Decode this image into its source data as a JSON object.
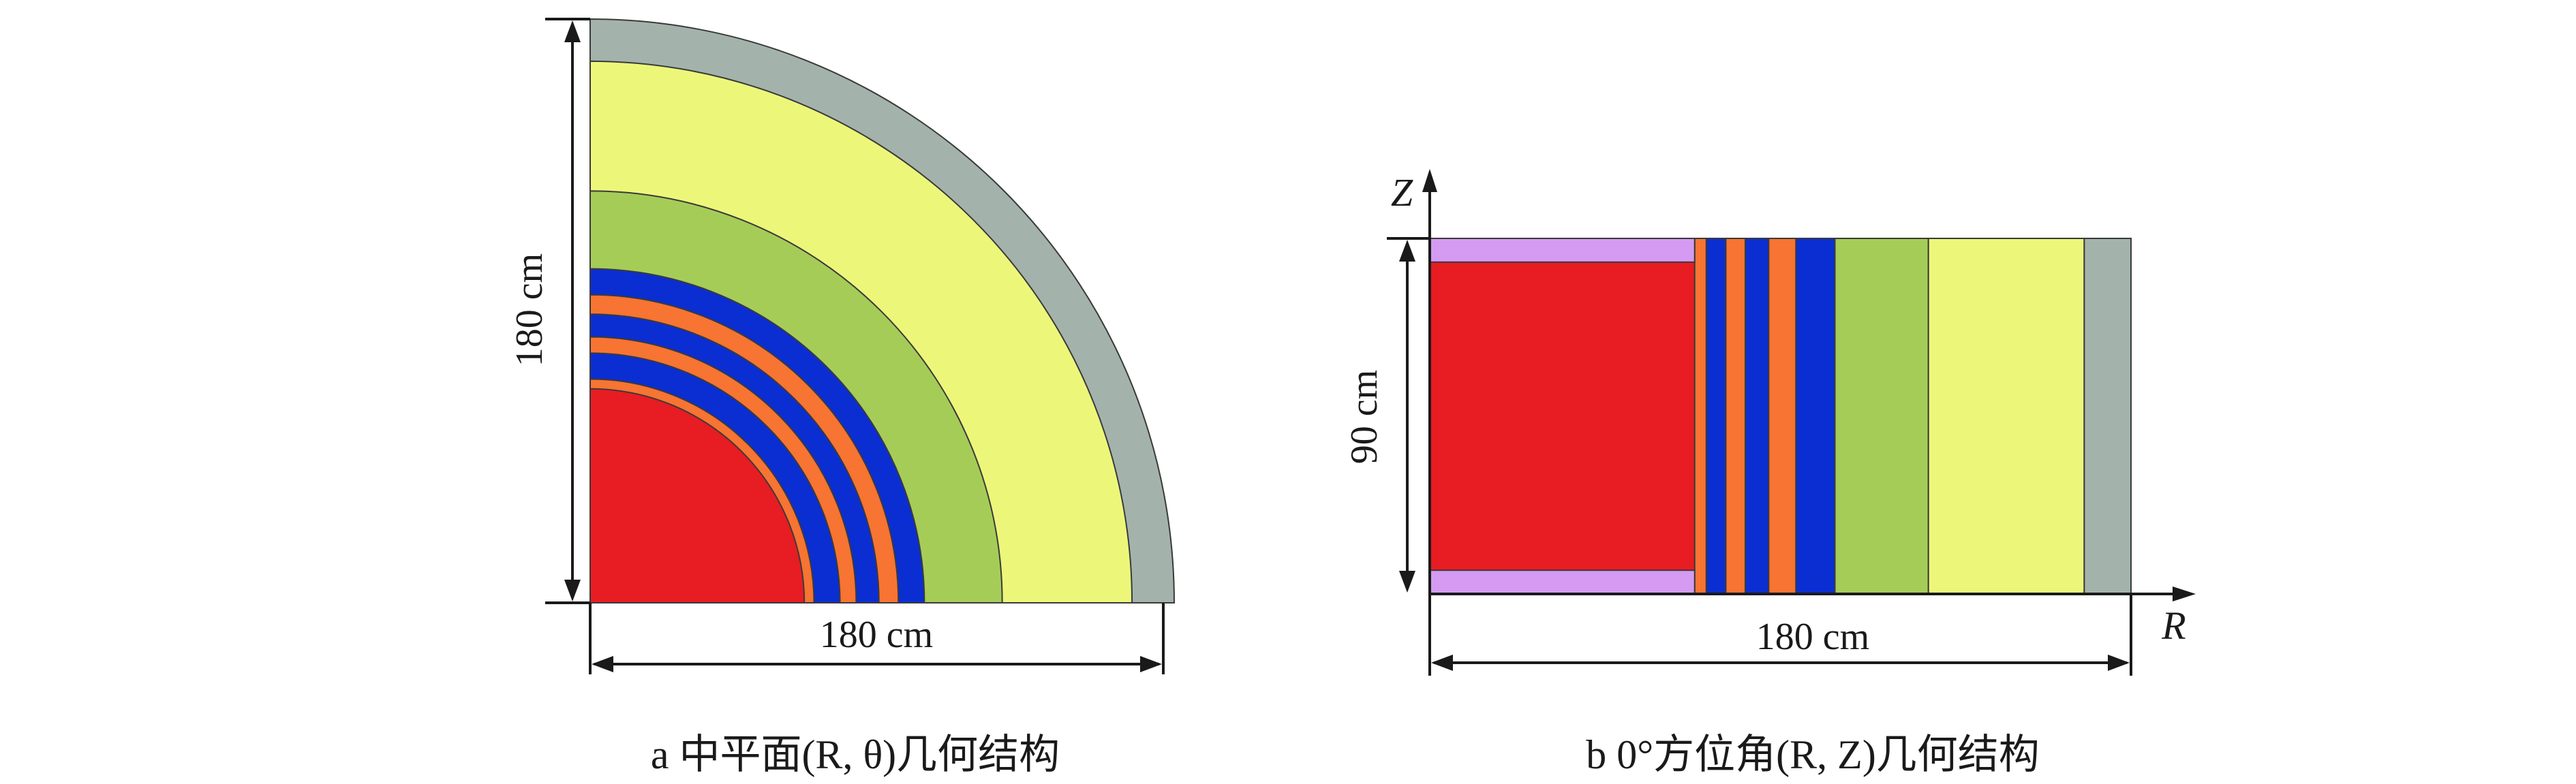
{
  "colors": {
    "grey": "#a3b3ab",
    "yellow": "#ecf77a",
    "green": "#a6cc58",
    "blue": "#0b2ed2",
    "orange": "#f77432",
    "red": "#e81c23",
    "violet": "#d59af2",
    "line": "#1a1a1a"
  },
  "panel_a": {
    "caption": "a  中平面(R, θ)几何结构",
    "vertical_dim_label": "180 cm",
    "horizontal_dim_label": "180 cm",
    "rings": [
      {
        "color": "grey",
        "r_outer": 180
      },
      {
        "color": "yellow",
        "r_outer": 167
      },
      {
        "color": "green",
        "r_outer": 127
      },
      {
        "color": "blue",
        "r_outer": 103
      },
      {
        "color": "orange",
        "r_outer": 95
      },
      {
        "color": "blue",
        "r_outer": 89
      },
      {
        "color": "orange",
        "r_outer": 82
      },
      {
        "color": "blue",
        "r_outer": 77
      },
      {
        "color": "orange",
        "r_outer": 69
      },
      {
        "color": "red",
        "r_outer": 66
      }
    ]
  },
  "panel_b": {
    "caption": "b  0°方位角(R, Z)几何结构",
    "axis_z": "Z",
    "axis_r": "R",
    "vertical_dim_label": "90 cm",
    "horizontal_dim_label": "180 cm",
    "columns": [
      {
        "color": "red",
        "r_start": 0,
        "r_end": 68
      },
      {
        "color": "orange",
        "r_start": 68,
        "r_end": 71
      },
      {
        "color": "blue",
        "r_start": 71,
        "r_end": 76
      },
      {
        "color": "orange",
        "r_start": 76,
        "r_end": 81
      },
      {
        "color": "blue",
        "r_start": 81,
        "r_end": 87
      },
      {
        "color": "orange",
        "r_start": 87,
        "r_end": 94
      },
      {
        "color": "blue",
        "r_start": 94,
        "r_end": 104
      },
      {
        "color": "green",
        "r_start": 104,
        "r_end": 128
      },
      {
        "color": "yellow",
        "r_start": 128,
        "r_end": 168
      },
      {
        "color": "grey",
        "r_start": 168,
        "r_end": 180
      }
    ],
    "caps": {
      "color": "violet",
      "r_end": 68,
      "thickness": 10
    },
    "z_extent": 90
  }
}
